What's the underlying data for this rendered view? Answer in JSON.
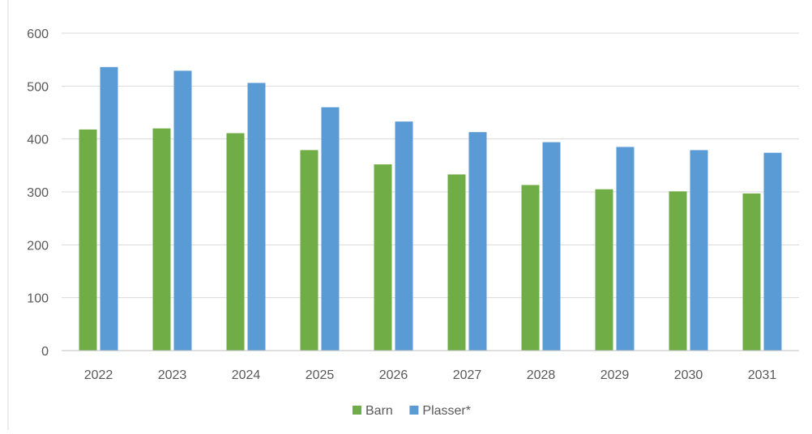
{
  "chart_data": {
    "type": "bar",
    "categories": [
      "2022",
      "2023",
      "2024",
      "2025",
      "2026",
      "2027",
      "2028",
      "2029",
      "2030",
      "2031"
    ],
    "series": [
      {
        "name": "Barn",
        "color": "#70ad47",
        "values": [
          418,
          420,
          411,
          379,
          352,
          333,
          313,
          305,
          301,
          297
        ]
      },
      {
        "name": "Plasser*",
        "color": "#5b9bd5",
        "values": [
          536,
          529,
          506,
          460,
          433,
          413,
          394,
          385,
          379,
          374
        ]
      }
    ],
    "y_ticks": [
      "0",
      "100",
      "200",
      "300",
      "400",
      "500",
      "600"
    ],
    "ylim": [
      0,
      600
    ],
    "grid": true,
    "legend_position": "bottom-center",
    "gridline_color": "#d9d9d9",
    "axis_color": "#bfbfbf",
    "text_color": "#595959"
  }
}
